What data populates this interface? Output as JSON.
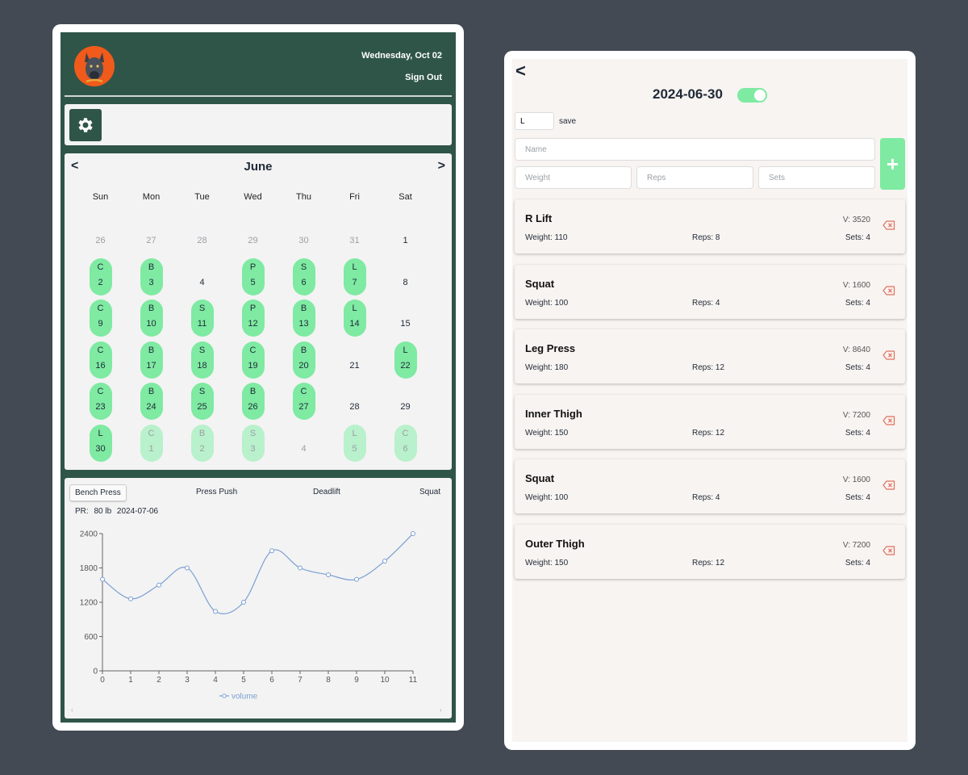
{
  "header": {
    "date": "Wednesday, Oct 02",
    "sign_out": "Sign Out"
  },
  "calendar": {
    "month": "June",
    "prev": "<",
    "next": ">",
    "weekdays": [
      "Sun",
      "Mon",
      "Tue",
      "Wed",
      "Thu",
      "Fri",
      "Sat"
    ],
    "weeks": [
      [
        {
          "n": "26",
          "o": true
        },
        {
          "n": "27",
          "o": true
        },
        {
          "n": "28",
          "o": true
        },
        {
          "n": "29",
          "o": true
        },
        {
          "n": "30",
          "o": true
        },
        {
          "n": "31",
          "o": true
        },
        {
          "n": "1"
        }
      ],
      [
        {
          "n": "2",
          "l": "C"
        },
        {
          "n": "3",
          "l": "B"
        },
        {
          "n": "4"
        },
        {
          "n": "5",
          "l": "P"
        },
        {
          "n": "6",
          "l": "S"
        },
        {
          "n": "7",
          "l": "L"
        },
        {
          "n": "8"
        }
      ],
      [
        {
          "n": "9",
          "l": "C"
        },
        {
          "n": "10",
          "l": "B"
        },
        {
          "n": "11",
          "l": "S"
        },
        {
          "n": "12",
          "l": "P"
        },
        {
          "n": "13",
          "l": "B"
        },
        {
          "n": "14",
          "l": "L"
        },
        {
          "n": "15"
        }
      ],
      [
        {
          "n": "16",
          "l": "C"
        },
        {
          "n": "17",
          "l": "B"
        },
        {
          "n": "18",
          "l": "S"
        },
        {
          "n": "19",
          "l": "C"
        },
        {
          "n": "20",
          "l": "B"
        },
        {
          "n": "21"
        },
        {
          "n": "22",
          "l": "L"
        }
      ],
      [
        {
          "n": "23",
          "l": "C"
        },
        {
          "n": "24",
          "l": "B"
        },
        {
          "n": "25",
          "l": "S"
        },
        {
          "n": "26",
          "l": "B"
        },
        {
          "n": "27",
          "l": "C"
        },
        {
          "n": "28"
        },
        {
          "n": "29"
        }
      ],
      [
        {
          "n": "30",
          "l": "L"
        },
        {
          "n": "1",
          "l": "C",
          "o": true
        },
        {
          "n": "2",
          "l": "B",
          "o": true
        },
        {
          "n": "3",
          "l": "S",
          "o": true
        },
        {
          "n": "4",
          "o": true
        },
        {
          "n": "5",
          "l": "L",
          "o": true
        },
        {
          "n": "6",
          "l": "C",
          "o": true
        }
      ]
    ]
  },
  "chart_tabs": [
    "Bench Press",
    "Press Push",
    "Deadlift",
    "Squat"
  ],
  "pr": {
    "label": "PR:",
    "weight": "80 lb",
    "date": "2024-07-06"
  },
  "chart_data": {
    "type": "line",
    "x": [
      0,
      1,
      2,
      3,
      4,
      5,
      6,
      7,
      8,
      9,
      10,
      11
    ],
    "series": [
      {
        "name": "volume",
        "values": [
          1600,
          1260,
          1500,
          1800,
          1040,
          1200,
          2100,
          1800,
          1680,
          1600,
          1920,
          2400
        ]
      }
    ],
    "yticks": [
      0,
      600,
      1200,
      1800,
      2400
    ],
    "ylim": [
      0,
      2400
    ],
    "xlim": [
      0,
      11
    ],
    "grid": false,
    "legend": "bottom",
    "color": "#7b9fd4"
  },
  "right": {
    "back": "<",
    "date": "2024-06-30",
    "short_value": "L",
    "save": "save",
    "name_placeholder": "Name",
    "weight_placeholder": "Weight",
    "reps_placeholder": "Reps",
    "sets_placeholder": "Sets",
    "add": "+",
    "exercises": [
      {
        "name": "R Lift",
        "vol": "V: 3520",
        "weight": "Weight: 110",
        "reps": "Reps: 8",
        "sets": "Sets: 4"
      },
      {
        "name": "Squat",
        "vol": "V: 1600",
        "weight": "Weight: 100",
        "reps": "Reps: 4",
        "sets": "Sets: 4"
      },
      {
        "name": "Leg Press",
        "vol": "V: 8640",
        "weight": "Weight: 180",
        "reps": "Reps: 12",
        "sets": "Sets: 4"
      },
      {
        "name": "Inner Thigh",
        "vol": "V: 7200",
        "weight": "Weight: 150",
        "reps": "Reps: 12",
        "sets": "Sets: 4"
      },
      {
        "name": "Squat",
        "vol": "V: 1600",
        "weight": "Weight: 100",
        "reps": "Reps: 4",
        "sets": "Sets: 4"
      },
      {
        "name": "Outer Thigh",
        "vol": "V: 7200",
        "weight": "Weight: 150",
        "reps": "Reps: 12",
        "sets": "Sets: 4"
      }
    ]
  },
  "colors": {
    "accent": "#7eeaa2",
    "panel": "#2f5548",
    "delete": "#e0705e"
  },
  "icons": {
    "settings": "gear-icon",
    "delete": "delete-backspace-icon"
  }
}
